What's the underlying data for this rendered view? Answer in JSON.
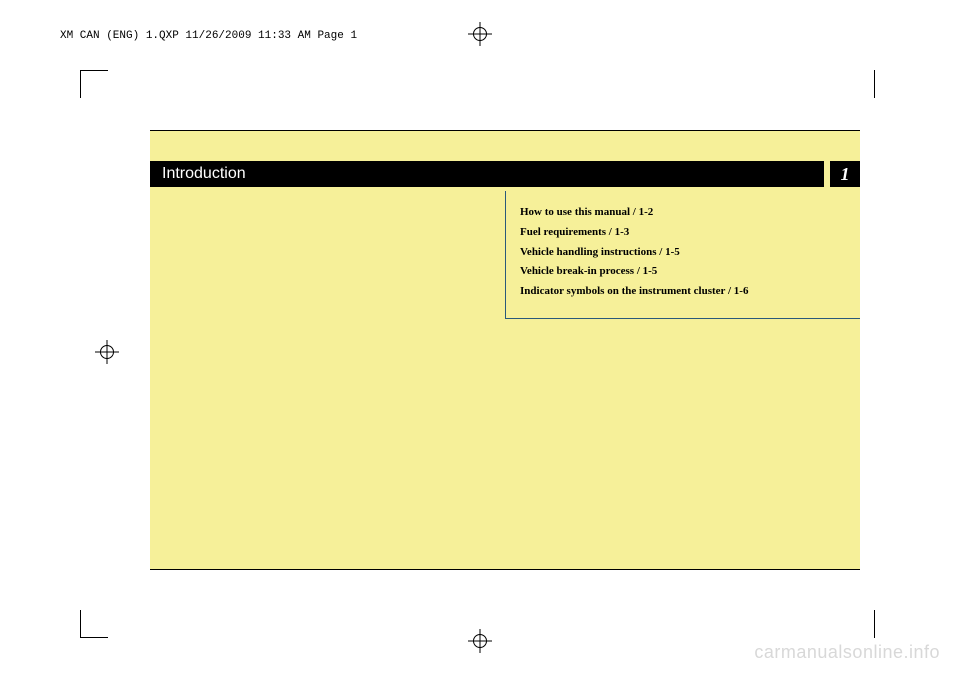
{
  "header_text": "XM CAN (ENG) 1.QXP  11/26/2009  11:33 AM  Page 1",
  "chapter": {
    "title": "Introduction",
    "number": "1"
  },
  "toc": {
    "items": [
      "How to use this manual / 1-2",
      "Fuel requirements / 1-3",
      "Vehicle handling instructions / 1-5",
      "Vehicle break-in process / 1-5",
      "Indicator symbols on the instrument cluster / 1-6"
    ]
  },
  "watermark": "carmanualsonline.info",
  "colors": {
    "page_background": "#f6f099",
    "chapter_bar": "#000000",
    "toc_border": "#2a5a7a",
    "watermark": "#d8d8d8"
  }
}
